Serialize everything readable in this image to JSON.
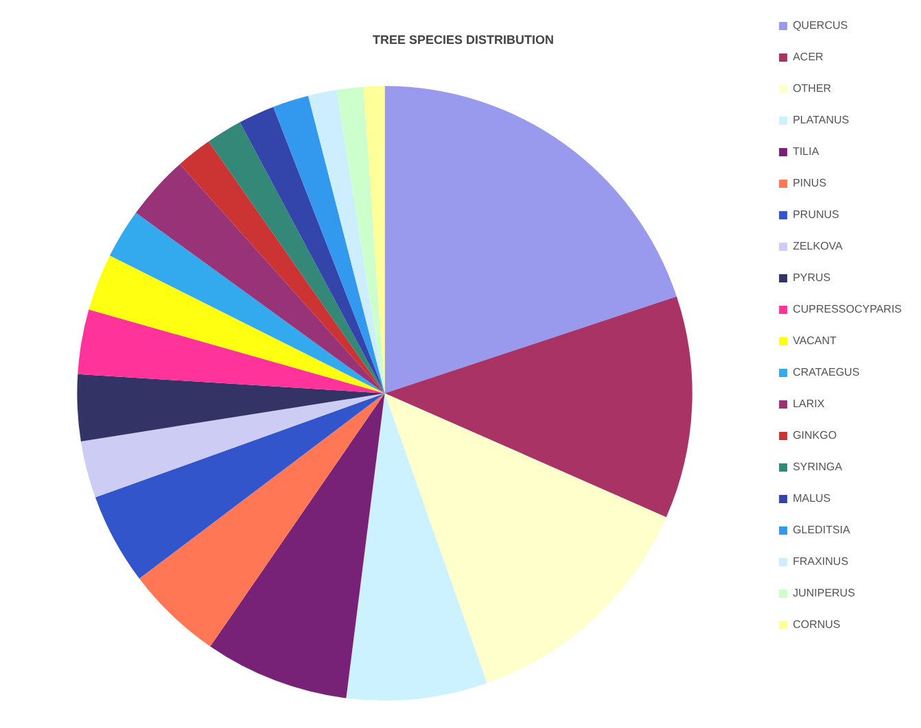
{
  "chart_data": {
    "type": "pie",
    "title": "TREE SPECIES DISTRIBUTION",
    "categories": [
      "QUERCUS",
      "ACER",
      "OTHER",
      "PLATANUS",
      "TILIA",
      "PINUS",
      "PRUNUS",
      "ZELKOVA",
      "PYRUS",
      "CUPRESSOCYPARIS",
      "VACANT",
      "CRATAEGUS",
      "LARIX",
      "GINKGO",
      "SYRINGA",
      "MALUS",
      "GLEDITSIA",
      "FRAXINUS",
      "JUNIPERUS",
      "CORNUS"
    ],
    "values": [
      19.9,
      11.7,
      13,
      7.4,
      7.6,
      5.1,
      4.8,
      3.0,
      3.5,
      3.4,
      3.0,
      2.6,
      3.4,
      1.9,
      1.9,
      1.9,
      1.9,
      1.5,
      1.4,
      1.1
    ],
    "colors": [
      "#9999ee",
      "#aa3366",
      "#ffffcc",
      "#ccf2ff",
      "#772277",
      "#ff7755",
      "#3355cc",
      "#ccccf5",
      "#333366",
      "#ff3399",
      "#ffff11",
      "#33aaee",
      "#993377",
      "#cc3333",
      "#338877",
      "#3344aa",
      "#3399ee",
      "#cceeff",
      "#ccffcc",
      "#ffff99"
    ],
    "legend": "right"
  }
}
